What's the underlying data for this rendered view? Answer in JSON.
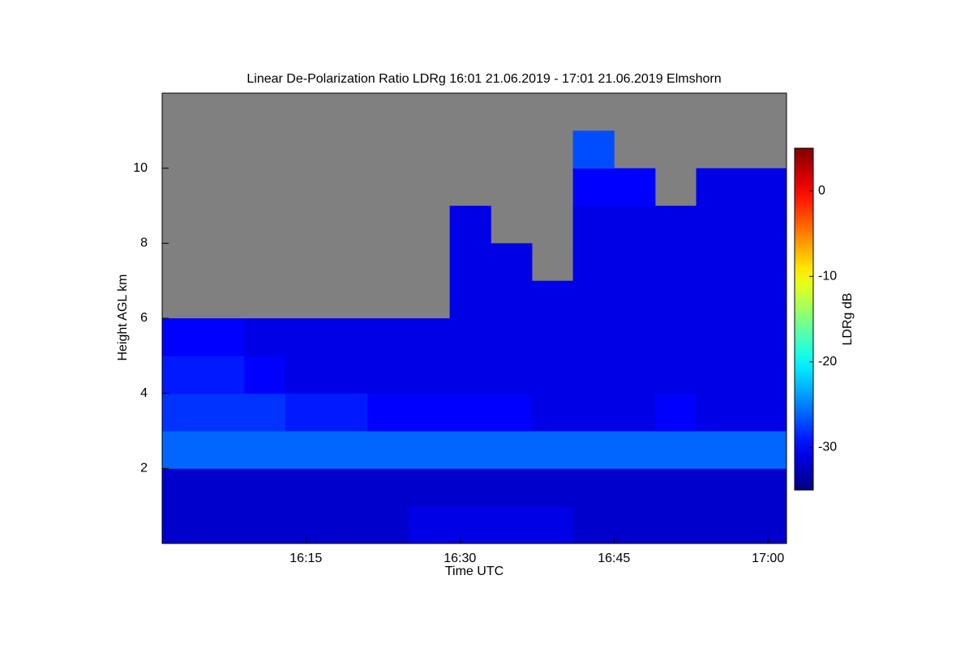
{
  "chart_data": {
    "type": "heatmap",
    "title": "Linear De-Polarization Ratio LDRg   16:01 21.06.2019 - 17:01 21.06.2019 Elmshorn",
    "xlabel": "Time UTC",
    "ylabel": "Height AGL km",
    "colorbar_label": "LDRg dB",
    "colormap": "jet",
    "missing_color": "#808080",
    "xlim": [
      961,
      1021.8
    ],
    "xticks": [
      {
        "value": 975,
        "label": "16:15"
      },
      {
        "value": 990,
        "label": "16:30"
      },
      {
        "value": 1005,
        "label": "16:45"
      },
      {
        "value": 1020,
        "label": "17:00"
      }
    ],
    "ylim": [
      0,
      12
    ],
    "yticks": [
      2,
      4,
      6,
      8,
      10
    ],
    "clim": [
      -35,
      5
    ],
    "cticks": [
      0,
      -10,
      -20,
      -30
    ],
    "xbins": [
      961,
      965,
      969,
      973,
      977,
      981,
      985,
      989,
      993,
      997,
      1001,
      1005,
      1009,
      1013,
      1017,
      1021.8
    ],
    "ybins": [
      0,
      1,
      2,
      3,
      4,
      5,
      6,
      7,
      8,
      9,
      10,
      11,
      12
    ],
    "z": [
      [
        -32,
        -32,
        -32,
        -32,
        -32,
        -32,
        -31,
        -31,
        -31,
        -31,
        -32,
        -32,
        -32,
        -32,
        -32
      ],
      [
        -32,
        -32,
        -32,
        -32,
        -32,
        -32,
        -32,
        -32,
        -32,
        -32,
        -32,
        -32,
        -32,
        -32,
        -32
      ],
      [
        -26,
        -26,
        -26,
        -26,
        -26,
        -26,
        -26,
        -26,
        -26,
        -26,
        -26,
        -26,
        -26,
        -26,
        -26
      ],
      [
        -28,
        -28,
        -28,
        -29,
        -29,
        -30,
        -30,
        -30,
        -30,
        -31,
        -31,
        -31,
        -30,
        -31,
        -31
      ],
      [
        -29,
        -29,
        -30,
        -31,
        -31,
        -31,
        -31,
        -31,
        -31,
        -31,
        -31,
        -31,
        -31,
        -31,
        -31
      ],
      [
        -30,
        -30,
        -31,
        -31,
        -31,
        -31,
        -31,
        -31,
        -31,
        -31,
        -31,
        -31,
        -31,
        -31,
        -31
      ],
      [
        null,
        null,
        null,
        null,
        null,
        null,
        null,
        -31,
        -31,
        -31,
        -31,
        -31,
        -31,
        -31,
        -31
      ],
      [
        null,
        null,
        null,
        null,
        null,
        null,
        null,
        -31,
        -31,
        null,
        -31,
        -31,
        -31,
        -31,
        -31
      ],
      [
        null,
        null,
        null,
        null,
        null,
        null,
        null,
        -31,
        null,
        null,
        -31,
        -31,
        -31,
        -31,
        -31
      ],
      [
        null,
        null,
        null,
        null,
        null,
        null,
        null,
        null,
        null,
        null,
        -30,
        -30,
        null,
        -31,
        -31
      ],
      [
        null,
        null,
        null,
        null,
        null,
        null,
        null,
        null,
        null,
        null,
        -27,
        null,
        null,
        null,
        null
      ],
      [
        null,
        null,
        null,
        null,
        null,
        null,
        null,
        null,
        null,
        null,
        null,
        null,
        null,
        null,
        null
      ]
    ]
  }
}
